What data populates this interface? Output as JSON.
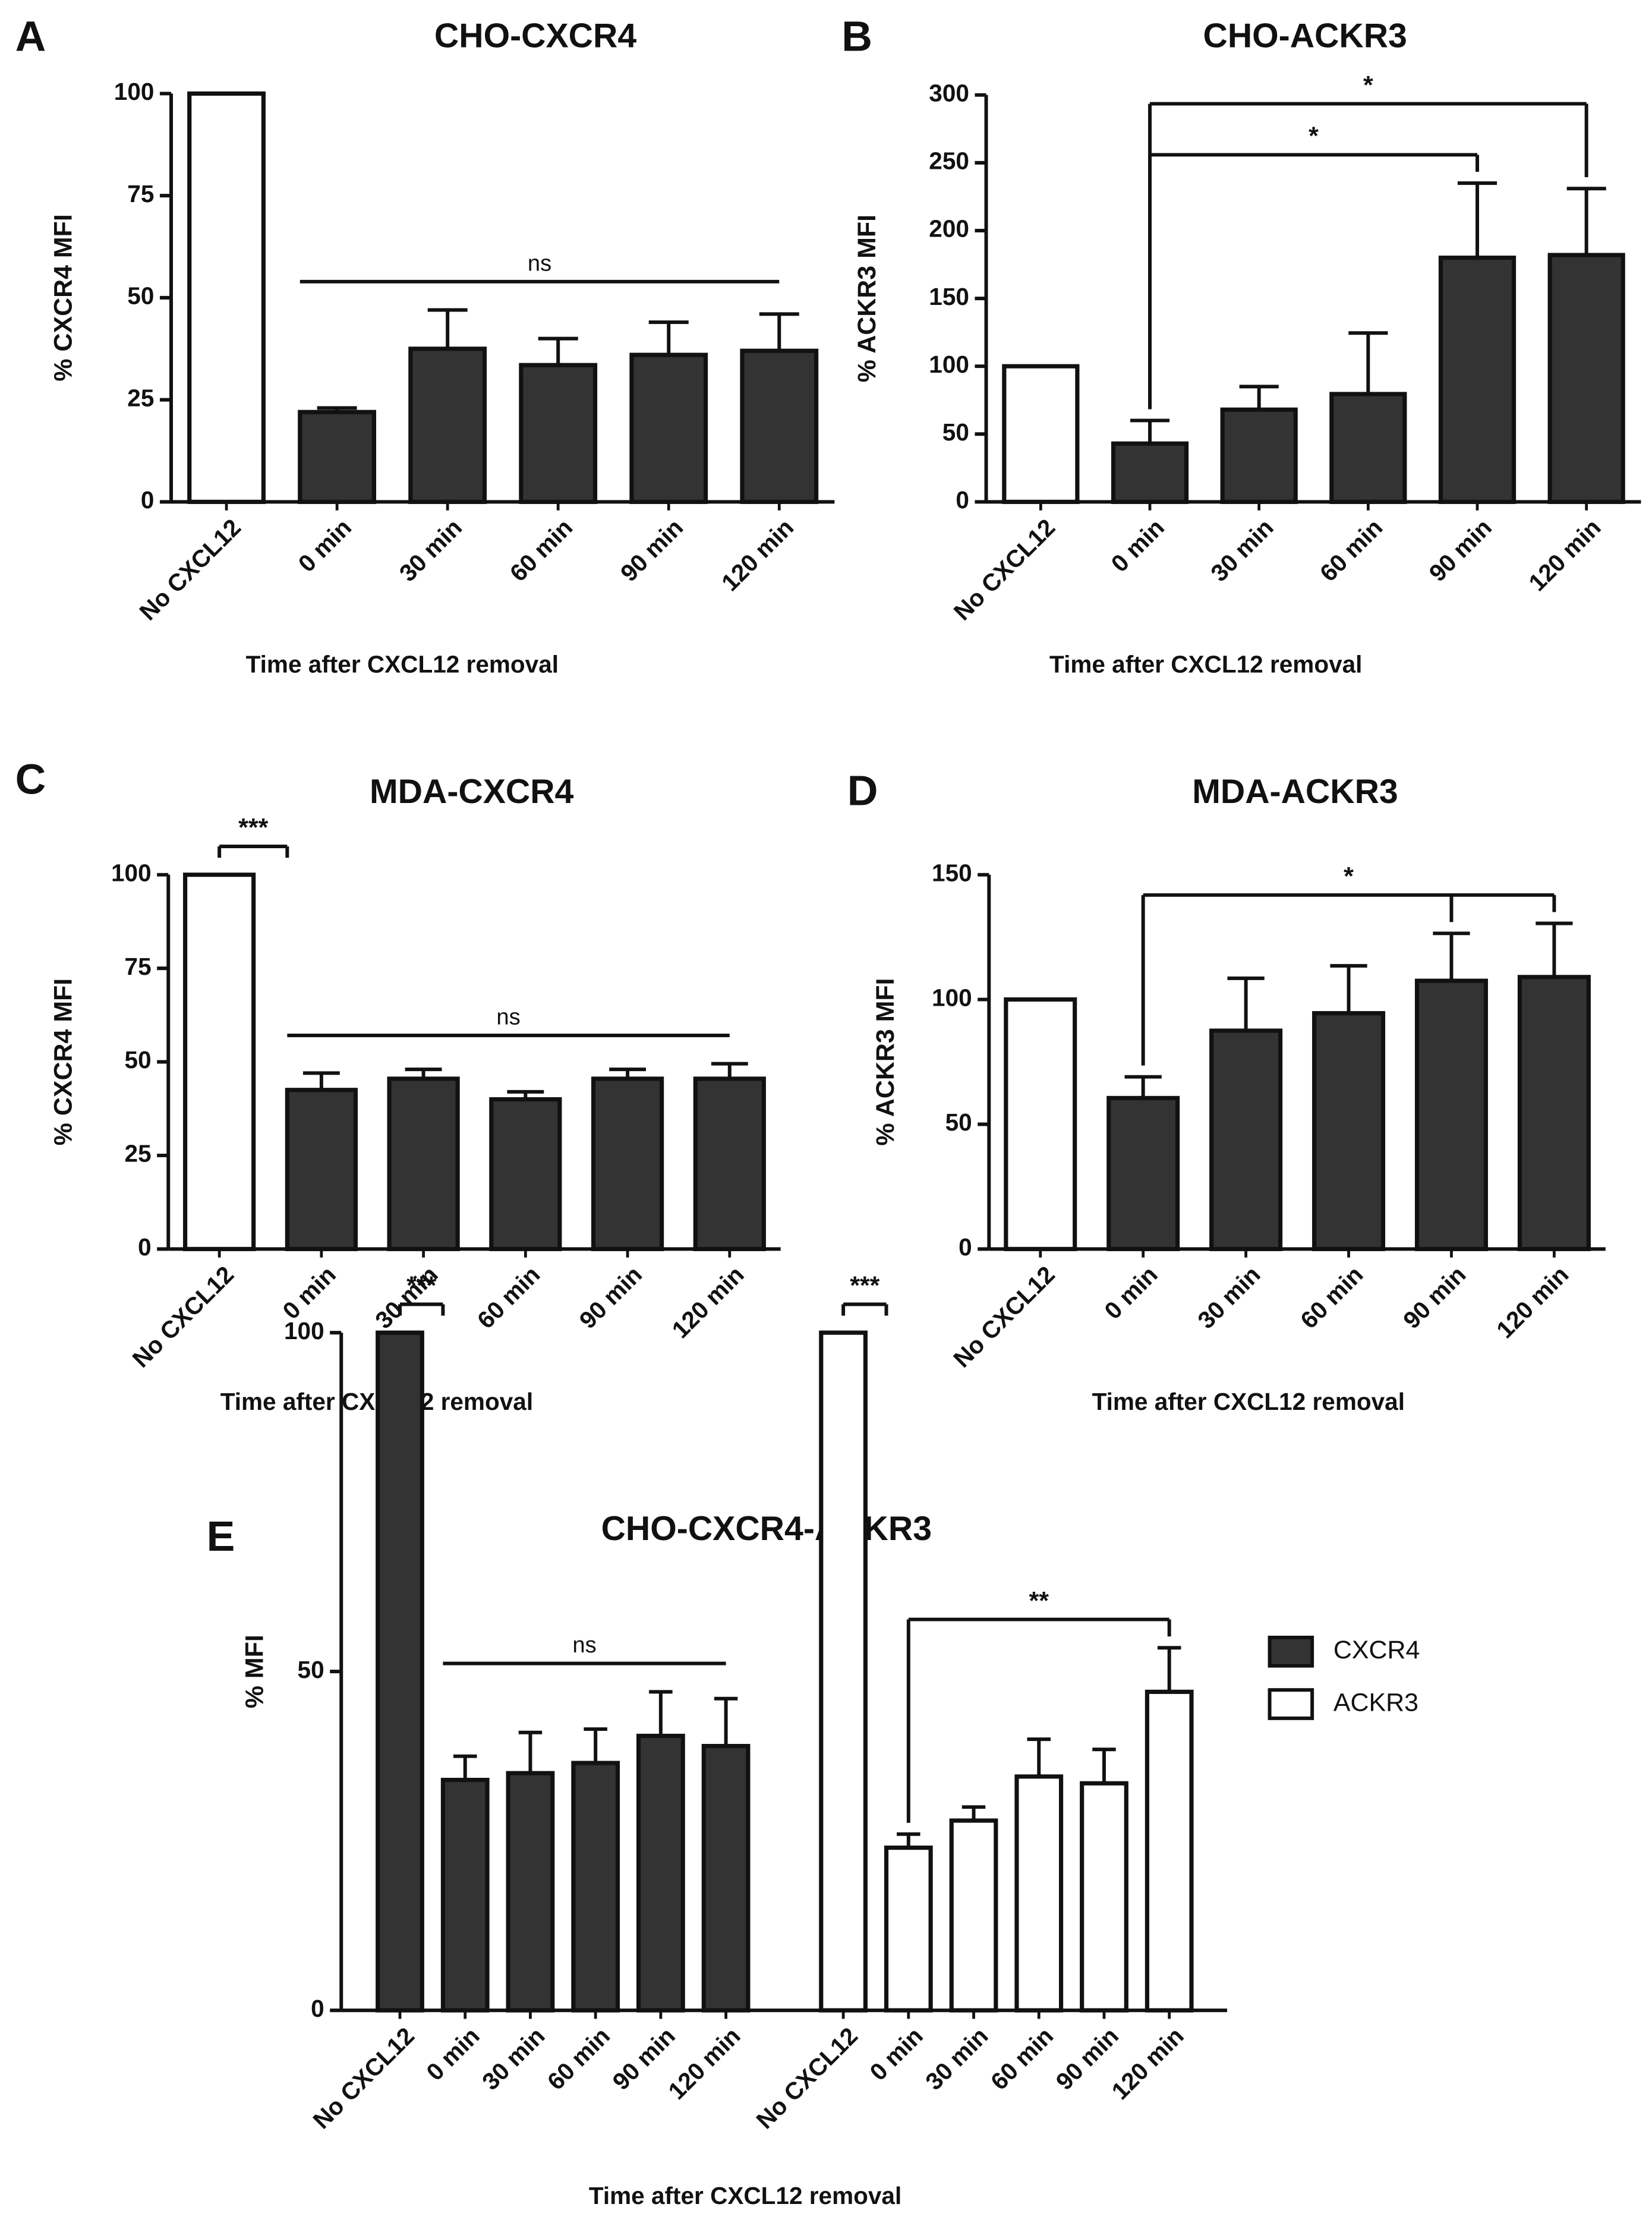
{
  "chart_data": [
    {
      "type": "bar",
      "panel": "A",
      "title": "CHO-CXCR4",
      "x_label": "Time after CXCL12 removal",
      "y_label": "% CXCR4 MFI",
      "categories": [
        "No CXCL12",
        "0 min",
        "30 min",
        "60 min",
        "90 min",
        "120 min"
      ],
      "values": [
        100,
        22,
        37.5,
        33.5,
        36,
        37
      ],
      "errors": [
        null,
        1,
        9.5,
        6.5,
        8,
        9
      ],
      "colors": [
        "#ffffff",
        "#333333",
        "#333333",
        "#333333",
        "#333333",
        "#333333"
      ],
      "ylim": [
        0,
        100
      ],
      "yticks": [
        0,
        25,
        50,
        75,
        100
      ],
      "annotations": [
        {
          "text": "ns",
          "style": "line",
          "from": "0 min",
          "to": [
            "120 min"
          ]
        }
      ]
    },
    {
      "type": "bar",
      "panel": "B",
      "title": "CHO-ACKR3",
      "x_label": "Time after CXCL12 removal",
      "y_label": "% ACKR3 MFI",
      "categories": [
        "No CXCL12",
        "0 min",
        "30 min",
        "60 min",
        "90 min",
        "120 min"
      ],
      "values": [
        100,
        43,
        68,
        79.5,
        180,
        182
      ],
      "errors": [
        null,
        17,
        17,
        45,
        55,
        49
      ],
      "colors": [
        "#ffffff",
        "#333333",
        "#333333",
        "#333333",
        "#333333",
        "#333333"
      ],
      "ylim": [
        0,
        300
      ],
      "yticks": [
        0,
        50,
        100,
        150,
        200,
        250,
        300
      ],
      "annotations": [
        {
          "text": "*",
          "style": "drop",
          "from": "0 min",
          "to": [
            "90 min"
          ]
        },
        {
          "text": "*",
          "style": "drop",
          "from": "0 min",
          "to": [
            "120 min"
          ]
        }
      ]
    },
    {
      "type": "bar",
      "panel": "C",
      "title": "MDA-CXCR4",
      "x_label": "Time after CXCL12 removal",
      "y_label": "% CXCR4 MFI",
      "categories": [
        "No CXCL12",
        "0 min",
        "30 min",
        "60 min",
        "90 min",
        "120 min"
      ],
      "values": [
        100,
        42.5,
        45.5,
        40,
        45.5,
        45.5
      ],
      "errors": [
        null,
        4.5,
        2.5,
        2,
        2.5,
        4
      ],
      "colors": [
        "#ffffff",
        "#333333",
        "#333333",
        "#333333",
        "#333333",
        "#333333"
      ],
      "ylim": [
        0,
        100
      ],
      "yticks": [
        0,
        25,
        50,
        75,
        100
      ],
      "annotations": [
        {
          "text": "***",
          "style": "bracket",
          "from": "No CXCL12",
          "to": [
            "0 min"
          ]
        },
        {
          "text": "ns",
          "style": "line",
          "from": "0 min",
          "to": [
            "120 min"
          ]
        }
      ]
    },
    {
      "type": "bar",
      "panel": "D",
      "title": "MDA-ACKR3",
      "x_label": "Time after CXCL12 removal",
      "y_label": "% ACKR3 MFI",
      "categories": [
        "No CXCL12",
        "0 min",
        "30 min",
        "60 min",
        "90 min",
        "120 min"
      ],
      "values": [
        100,
        60.5,
        87.5,
        94.5,
        107.5,
        109
      ],
      "errors": [
        null,
        8.5,
        21,
        19,
        19,
        21.5
      ],
      "colors": [
        "#ffffff",
        "#333333",
        "#333333",
        "#333333",
        "#333333",
        "#333333"
      ],
      "ylim": [
        0,
        150
      ],
      "yticks": [
        0,
        50,
        100,
        150
      ],
      "annotations": [
        {
          "text": "*",
          "style": "drop",
          "from": "0 min",
          "to": [
            "90 min",
            "120 min"
          ]
        }
      ]
    },
    {
      "type": "grouped_bar",
      "panel": "E",
      "title": "CHO-CXCR4-ACKR3",
      "x_label": "Time after CXCL12 removal",
      "y_label": "% MFI",
      "categories": [
        "No CXCL12",
        "0 min",
        "30 min",
        "60 min",
        "90 min",
        "120 min"
      ],
      "ylim": [
        0,
        100
      ],
      "yticks": [
        0,
        50,
        100
      ],
      "legend": "right",
      "series": [
        {
          "name": "CXCR4",
          "color": "#333333",
          "values": [
            100,
            34,
            35,
            36.5,
            40.5,
            39
          ],
          "errors": [
            null,
            3.5,
            6,
            5,
            6.5,
            7
          ],
          "annotations": [
            {
              "text": "***",
              "style": "bracket",
              "from": "No CXCL12",
              "to": [
                "0 min"
              ]
            },
            {
              "text": "ns",
              "style": "line",
              "from": "0 min",
              "to": [
                "120 min"
              ]
            }
          ]
        },
        {
          "name": "ACKR3",
          "color": "#ffffff",
          "values": [
            100,
            24,
            28,
            34.5,
            33.5,
            47
          ],
          "errors": [
            null,
            2,
            2,
            5.5,
            5,
            6.5
          ],
          "annotations": [
            {
              "text": "***",
              "style": "bracket",
              "from": "No CXCL12",
              "to": [
                "0 min"
              ]
            },
            {
              "text": "**",
              "style": "drop",
              "from": "0 min",
              "to": [
                "120 min"
              ]
            }
          ]
        }
      ]
    }
  ]
}
